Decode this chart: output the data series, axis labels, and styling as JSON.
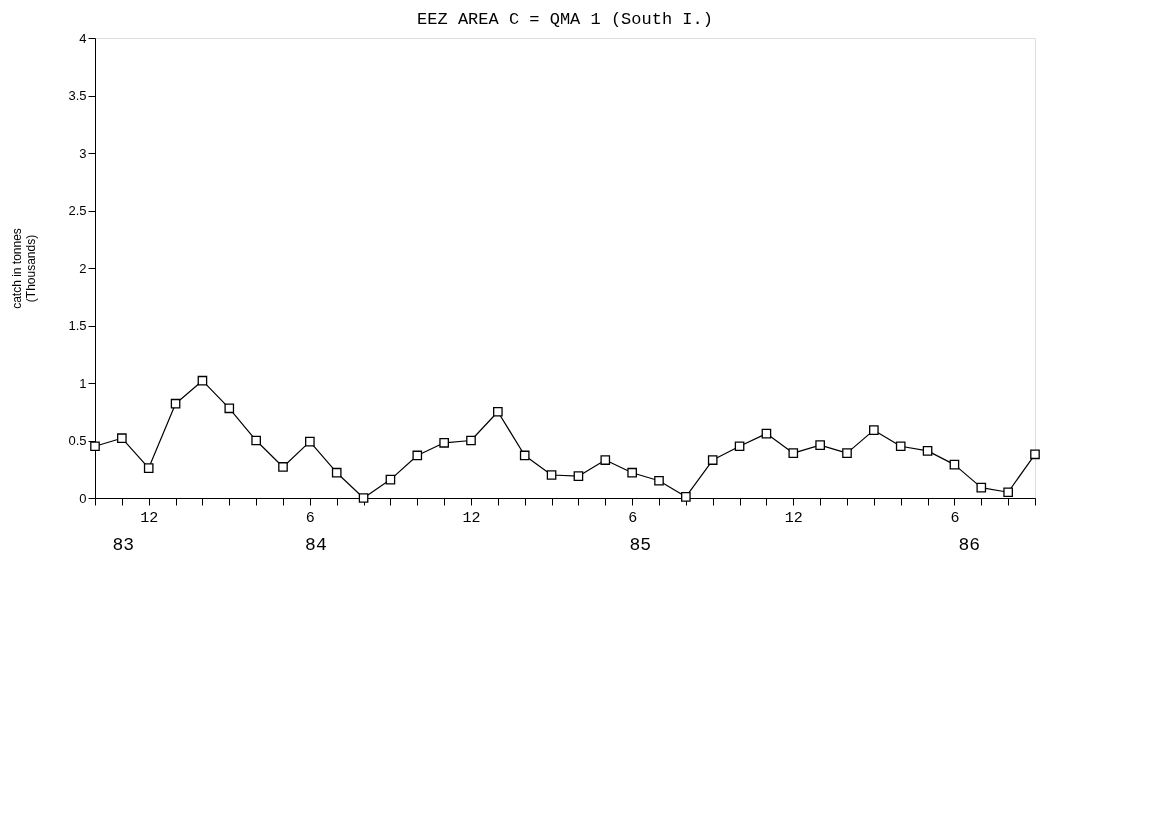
{
  "chart_data": {
    "type": "line",
    "title": "EEZ AREA C = QMA 1 (South I.)",
    "ylabel": "catch in tonnes\n(Thousands)",
    "categories": [
      null,
      null,
      "12",
      null,
      null,
      null,
      null,
      null,
      "6",
      null,
      null,
      null,
      null,
      null,
      "12",
      null,
      null,
      null,
      null,
      null,
      "6",
      null,
      null,
      null,
      null,
      null,
      "12",
      null,
      null,
      null,
      null,
      null,
      "6",
      null,
      null,
      null
    ],
    "series": [
      {
        "color": "#000000",
        "values": [
          0.45,
          0.52,
          0.26,
          0.82,
          1.02,
          0.78,
          0.5,
          0.27,
          0.49,
          0.22,
          0.0,
          0.16,
          0.37,
          0.48,
          0.5,
          0.75,
          0.37,
          0.2,
          0.19,
          0.33,
          0.22,
          0.15,
          0.01,
          0.33,
          0.45,
          0.56,
          0.39,
          0.46,
          0.39,
          0.59,
          0.45,
          0.41,
          0.29,
          0.09,
          0.05,
          0.38
        ]
      }
    ],
    "ylim": [
      0,
      4
    ],
    "yticks": [
      0,
      0.5,
      1,
      1.5,
      2,
      2.5,
      3,
      3.5,
      4
    ],
    "marker": "square",
    "line_style": "solid",
    "grid": false,
    "legend": false,
    "annotations": [
      "83",
      "84",
      "85",
      "86"
    ]
  }
}
